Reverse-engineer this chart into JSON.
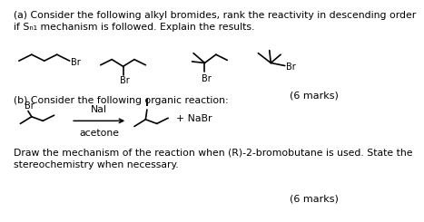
{
  "bg_color": "#ffffff",
  "text_color": "#000000",
  "title_a": "(a) Consider the following alkyl bromides, rank the reactivity in descending order\nif Sₙ₁ mechanism is followed. Explain the results.",
  "marks_a": "(6 marks)",
  "title_b": "(b) Consider the following organic reaction:",
  "marks_b": "(6 marks)",
  "draw_text": "Draw the mechanism of the reaction when (R)-2-bromobutane is used. State the\nstereochemistry when necessary.",
  "reagent_top": "NaI",
  "reagent_bottom": "acetone",
  "nabr": "+ NaBr",
  "lw": 1.2,
  "fs_main": 7.8,
  "fs_small": 7.0,
  "fs_marks": 8.0
}
